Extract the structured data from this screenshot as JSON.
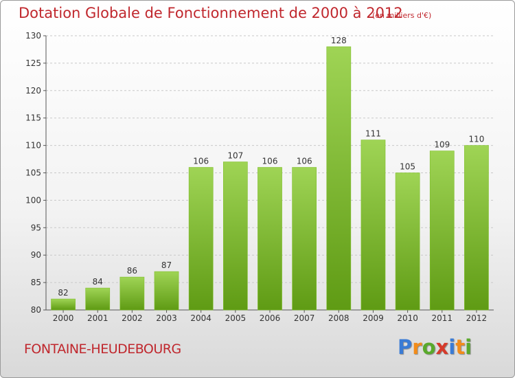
{
  "title": "Dotation Globale de Fonctionnement de 2000 à 2012",
  "subtitle": "(en milliers d'€)",
  "commune": "FONTAINE-HEUDEBOURG",
  "logo": {
    "letters": [
      "P",
      "r",
      "o",
      "x",
      "i",
      "t",
      "i"
    ],
    "colors": [
      "#3a7bd5",
      "#f28c1a",
      "#59a92b",
      "#d63a2a",
      "#3a7bd5",
      "#f28c1a",
      "#59a92b"
    ]
  },
  "colors": {
    "accent": "#c0272d",
    "bar_top": "#9fd455",
    "bar_bottom": "#5f9b14",
    "grid": "#c8c8c8",
    "axis": "#555555"
  },
  "chart_data": {
    "type": "bar",
    "categories": [
      "2000",
      "2001",
      "2002",
      "2003",
      "2004",
      "2005",
      "2006",
      "2007",
      "2008",
      "2009",
      "2010",
      "2011",
      "2012"
    ],
    "values": [
      82,
      84,
      86,
      87,
      106,
      107,
      106,
      106,
      128,
      111,
      105,
      109,
      110
    ],
    "title": "Dotation Globale de Fonctionnement de 2000 à 2012",
    "subtitle": "(en milliers d'€)",
    "ylim": [
      80,
      130
    ],
    "yticks": [
      80,
      85,
      90,
      95,
      100,
      105,
      110,
      115,
      120,
      125,
      130
    ],
    "grid": true,
    "data_labels": true
  }
}
